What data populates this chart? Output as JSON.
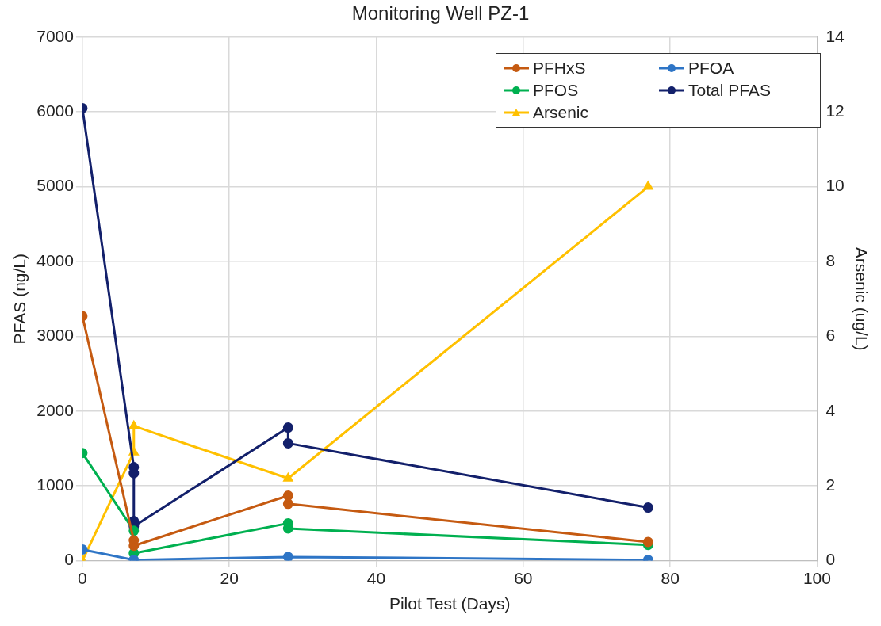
{
  "chart_data": {
    "type": "line",
    "title": "Monitoring Well PZ-1",
    "xlabel": "Pilot Test (Days)",
    "ylabel": "PFAS (ng/L)",
    "y2label": "Arsenic (ug/L)",
    "xlim": [
      0,
      100
    ],
    "xticks": [
      0,
      20,
      40,
      60,
      80,
      100
    ],
    "ylim": [
      0,
      7000
    ],
    "yticks": [
      0,
      1000,
      2000,
      3000,
      4000,
      5000,
      6000,
      7000
    ],
    "y2lim": [
      0,
      14
    ],
    "y2ticks": [
      0,
      2,
      4,
      6,
      8,
      10,
      12,
      14
    ],
    "grid": true,
    "legend": "top right",
    "series": [
      {
        "name": "PFHxS",
        "color": "#c55a11",
        "marker": "circle",
        "x": [
          0,
          7,
          7,
          28,
          28,
          77
        ],
        "values": [
          3270,
          270,
          200,
          870,
          760,
          250
        ]
      },
      {
        "name": "PFOA",
        "color": "#2e75c6",
        "marker": "circle",
        "x": [
          0,
          7,
          28,
          77
        ],
        "values": [
          150,
          10,
          50,
          10
        ]
      },
      {
        "name": "PFOS",
        "color": "#00b050",
        "marker": "circle",
        "x": [
          0,
          7,
          7,
          28,
          28,
          77
        ],
        "values": [
          1440,
          400,
          100,
          500,
          430,
          210
        ]
      },
      {
        "name": "Total PFAS",
        "color": "#13206b",
        "marker": "circle",
        "x": [
          0,
          7,
          7,
          7,
          7,
          28,
          28,
          77
        ],
        "values": [
          6050,
          1250,
          1170,
          530,
          460,
          1780,
          1570,
          710
        ]
      },
      {
        "name": "Arsenic",
        "color": "#ffc000",
        "marker": "triangle",
        "axis": "y2",
        "x": [
          0,
          7,
          7,
          28,
          77
        ],
        "values": [
          0,
          2.9,
          3.6,
          2.2,
          10
        ]
      }
    ]
  }
}
